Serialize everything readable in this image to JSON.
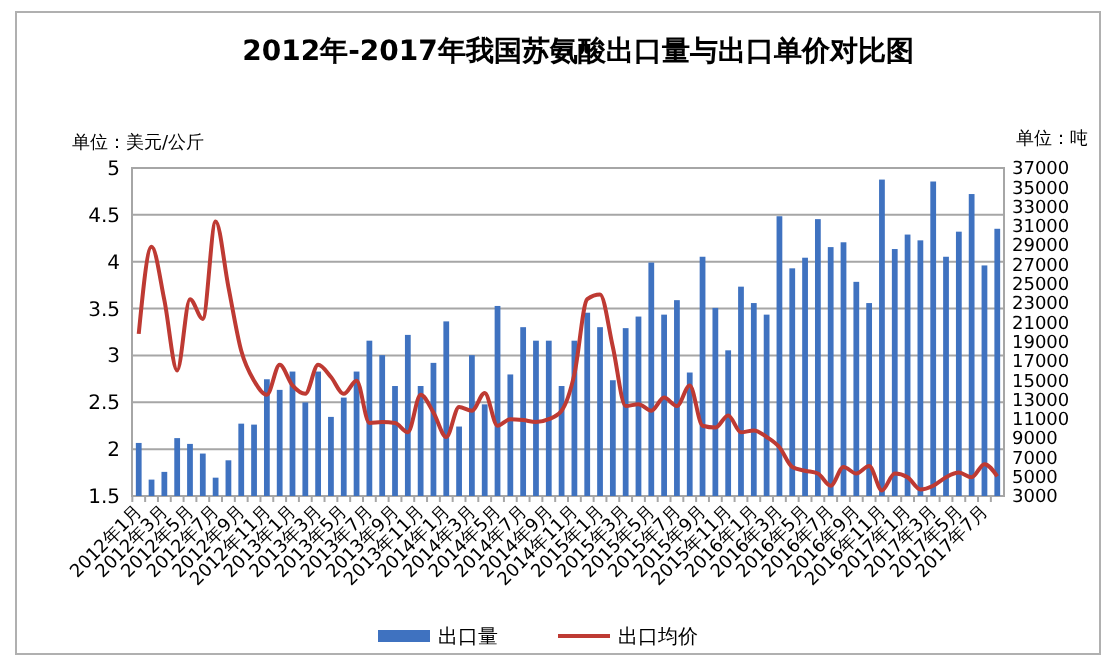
{
  "chart_data": {
    "type": "bar",
    "title": "2012年-2017年我国苏氨酸出口量与出口单价对比图",
    "ylabel": "单位：美元/公斤",
    "y2label": "单位：吨",
    "categories": [
      "2012年1月",
      null,
      "2012年3月",
      null,
      "2012年5月",
      null,
      "2012年7月",
      null,
      "2012年9月",
      null,
      "2012年11月",
      null,
      "2013年1月",
      null,
      "2013年3月",
      null,
      "2013年5月",
      null,
      "2013年7月",
      null,
      "2013年9月",
      null,
      "2013年11月",
      null,
      "2014年1月",
      null,
      "2014年3月",
      null,
      "2014年5月",
      null,
      "2014年7月",
      null,
      "2014年9月",
      null,
      "2014年11月",
      null,
      "2015年1月",
      null,
      "2015年3月",
      null,
      "2015年5月",
      null,
      "2015年7月",
      null,
      "2015年9月",
      null,
      "2015年11月",
      null,
      "2016年1月",
      null,
      "2016年3月",
      null,
      "2016年5月",
      null,
      "2016年7月",
      null,
      "2016年9月",
      null,
      "2016年11月",
      null,
      "2017年1月",
      null,
      "2017年3月",
      null,
      "2017年5月",
      null,
      "2017年7月",
      null
    ],
    "series": [
      {
        "name": "出口量",
        "axis": "y2",
        "color": "#3f72c0",
        "values": [
          8500,
          4700,
          5500,
          9000,
          8400,
          7400,
          4900,
          6700,
          10500,
          10400,
          15100,
          14000,
          15900,
          12700,
          15900,
          11200,
          13200,
          15900,
          19100,
          17600,
          14400,
          19700,
          14400,
          16800,
          21100,
          10200,
          17600,
          12500,
          22700,
          15600,
          20500,
          19100,
          19100,
          14400,
          19100,
          22000,
          20500,
          15000,
          20400,
          21600,
          27200,
          21800,
          23300,
          15800,
          27800,
          22500,
          18100,
          24700,
          23000,
          21800,
          32000,
          26600,
          27700,
          31700,
          28800,
          29300,
          25200,
          23000,
          35800,
          28600,
          30100,
          29500,
          35600,
          27800,
          30400,
          34300,
          26900,
          30700
        ]
      },
      {
        "name": "出口均价",
        "type": "line",
        "color": "#be3a33",
        "values": [
          3.23,
          4.16,
          3.59,
          2.84,
          3.6,
          3.39,
          4.43,
          3.73,
          3.05,
          2.73,
          2.58,
          2.9,
          2.68,
          2.59,
          2.9,
          2.77,
          2.59,
          2.73,
          2.28,
          2.29,
          2.28,
          2.18,
          2.58,
          2.39,
          2.13,
          2.45,
          2.41,
          2.6,
          2.25,
          2.32,
          2.31,
          2.29,
          2.32,
          2.41,
          2.8,
          3.6,
          3.65,
          3.09,
          2.46,
          2.48,
          2.41,
          2.55,
          2.46,
          2.68,
          2.25,
          2.23,
          2.36,
          2.18,
          2.2,
          2.13,
          2.02,
          1.81,
          1.77,
          1.74,
          1.61,
          1.81,
          1.74,
          1.82,
          1.56,
          1.74,
          1.7,
          1.57,
          1.61,
          1.7,
          1.75,
          1.7,
          1.84,
          1.71
        ]
      }
    ],
    "ylim": [
      1.5,
      5
    ],
    "yticks": [
      1.5,
      2,
      2.5,
      3,
      3.5,
      4,
      4.5,
      5
    ],
    "y2lim": [
      3000,
      37000
    ],
    "y2ticks": [
      3000,
      5000,
      7000,
      9000,
      11000,
      13000,
      15000,
      17000,
      19000,
      21000,
      23000,
      25000,
      27000,
      29000,
      31000,
      33000,
      35000,
      37000
    ],
    "grid": "y",
    "legend": "bottom",
    "marker": "none",
    "line_style": "solid"
  }
}
